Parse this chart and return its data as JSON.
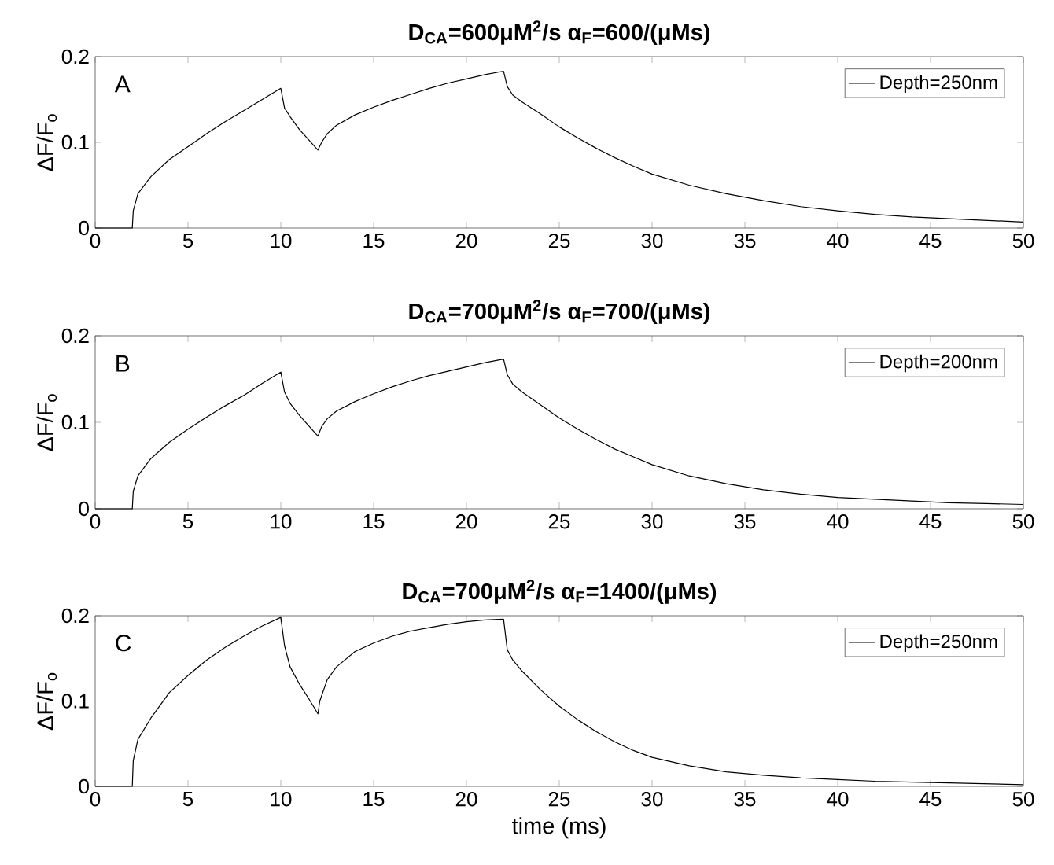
{
  "chart_data": [
    {
      "type": "line",
      "title": "D$_{CA}$=600μM$^{2}$/s α$_{F}$=600/(μMs)",
      "ylabel": "ΔF/F$_{o}$",
      "annotations": [
        "A"
      ],
      "legend": "top right",
      "xlim": [
        0,
        50
      ],
      "ylim": [
        0,
        0.2
      ],
      "xticks": [
        0,
        5,
        10,
        15,
        20,
        25,
        30,
        35,
        40,
        45,
        50
      ],
      "yticks": [
        0,
        0.1,
        0.2
      ],
      "series": [
        {
          "name": "Depth=250nm",
          "color": "#000000",
          "x": [
            0,
            2,
            2.05,
            2.3,
            3,
            4,
            5,
            6,
            7,
            8,
            9,
            10,
            10.2,
            10.5,
            11,
            11.5,
            12,
            12.2,
            12.5,
            13,
            14,
            15,
            16,
            17,
            18,
            19,
            20,
            21,
            22,
            22.2,
            22.5,
            23,
            24,
            25,
            26,
            27,
            28,
            29,
            30,
            32,
            34,
            36,
            38,
            40,
            42,
            44,
            46,
            48,
            50
          ],
          "values": [
            0,
            0,
            0.02,
            0.04,
            0.06,
            0.08,
            0.095,
            0.11,
            0.124,
            0.137,
            0.15,
            0.163,
            0.14,
            0.13,
            0.115,
            0.103,
            0.091,
            0.1,
            0.11,
            0.12,
            0.132,
            0.141,
            0.149,
            0.156,
            0.163,
            0.169,
            0.174,
            0.179,
            0.183,
            0.165,
            0.155,
            0.147,
            0.133,
            0.118,
            0.105,
            0.093,
            0.082,
            0.072,
            0.063,
            0.05,
            0.04,
            0.032,
            0.025,
            0.02,
            0.016,
            0.013,
            0.011,
            0.009,
            0.007
          ]
        }
      ]
    },
    {
      "type": "line",
      "title": "D$_{CA}$=700μM$^{2}$/s α$_{F}$=700/(μMs)",
      "ylabel": "ΔF/F$_{o}$",
      "annotations": [
        "B"
      ],
      "legend": "top right",
      "xlim": [
        0,
        50
      ],
      "ylim": [
        0,
        0.2
      ],
      "xticks": [
        0,
        5,
        10,
        15,
        20,
        25,
        30,
        35,
        40,
        45,
        50
      ],
      "yticks": [
        0,
        0.1,
        0.2
      ],
      "series": [
        {
          "name": "Depth=200nm",
          "color": "#000000",
          "x": [
            0,
            2,
            2.05,
            2.3,
            3,
            4,
            5,
            6,
            7,
            8,
            9,
            10,
            10.2,
            10.5,
            11,
            11.5,
            12,
            12.2,
            12.5,
            13,
            14,
            15,
            16,
            17,
            18,
            19,
            20,
            21,
            22,
            22.2,
            22.5,
            23,
            24,
            25,
            26,
            27,
            28,
            29,
            30,
            32,
            34,
            36,
            38,
            40,
            42,
            44,
            46,
            48,
            50
          ],
          "values": [
            0,
            0,
            0.02,
            0.038,
            0.058,
            0.077,
            0.092,
            0.106,
            0.119,
            0.131,
            0.145,
            0.158,
            0.135,
            0.122,
            0.108,
            0.096,
            0.084,
            0.095,
            0.104,
            0.113,
            0.124,
            0.133,
            0.141,
            0.148,
            0.154,
            0.159,
            0.164,
            0.169,
            0.173,
            0.155,
            0.144,
            0.135,
            0.12,
            0.105,
            0.092,
            0.08,
            0.069,
            0.06,
            0.051,
            0.038,
            0.029,
            0.022,
            0.017,
            0.013,
            0.011,
            0.009,
            0.007,
            0.006,
            0.005
          ]
        }
      ]
    },
    {
      "type": "line",
      "title": "D$_{CA}$=700μM$^{2}$/s α$_{F}$=1400/(μMs)",
      "xlabel": "time (ms)",
      "ylabel": "ΔF/F$_{o}$",
      "annotations": [
        "C"
      ],
      "legend": "top right",
      "xlim": [
        0,
        50
      ],
      "ylim": [
        0,
        0.2
      ],
      "xticks": [
        0,
        5,
        10,
        15,
        20,
        25,
        30,
        35,
        40,
        45,
        50
      ],
      "yticks": [
        0,
        0.1,
        0.2
      ],
      "series": [
        {
          "name": "Depth=250nm",
          "color": "#000000",
          "x": [
            0,
            2,
            2.05,
            2.3,
            3,
            4,
            5,
            6,
            7,
            8,
            9,
            10,
            10.2,
            10.5,
            11,
            11.5,
            12,
            12.1,
            12.5,
            13,
            14,
            15,
            16,
            17,
            18,
            19,
            20,
            21,
            22,
            22.2,
            22.5,
            23,
            24,
            25,
            26,
            27,
            28,
            29,
            30,
            32,
            34,
            36,
            38,
            40,
            42,
            44,
            46,
            48,
            50
          ],
          "values": [
            0,
            0,
            0.03,
            0.055,
            0.08,
            0.11,
            0.13,
            0.148,
            0.163,
            0.176,
            0.188,
            0.198,
            0.165,
            0.14,
            0.12,
            0.103,
            0.085,
            0.1,
            0.125,
            0.14,
            0.158,
            0.168,
            0.176,
            0.182,
            0.186,
            0.19,
            0.193,
            0.195,
            0.196,
            0.16,
            0.148,
            0.135,
            0.113,
            0.094,
            0.078,
            0.064,
            0.052,
            0.042,
            0.034,
            0.024,
            0.017,
            0.013,
            0.01,
            0.008,
            0.006,
            0.005,
            0.004,
            0.003,
            0.002
          ]
        }
      ]
    }
  ]
}
